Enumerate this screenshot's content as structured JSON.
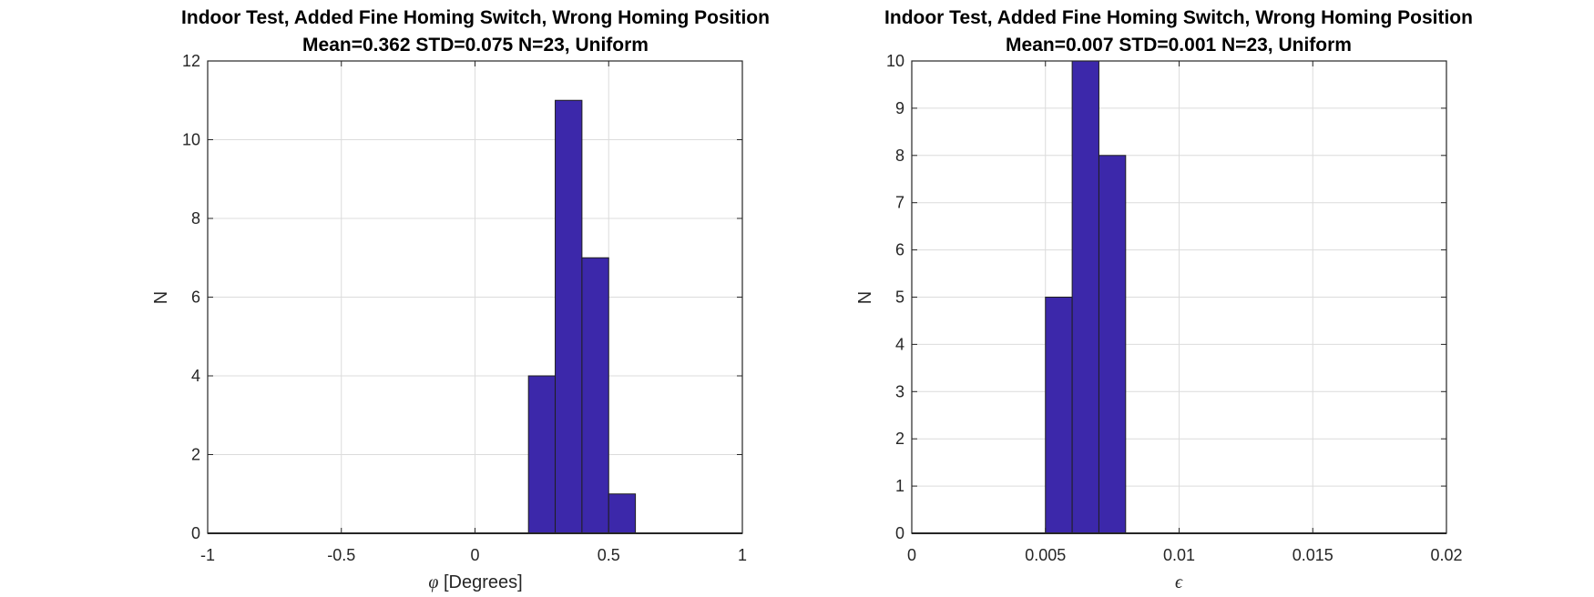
{
  "chart_data": [
    {
      "type": "bar",
      "title": "Indoor Test, Added Fine Homing Switch, Wrong Homing Position",
      "subtitle": "Mean=0.362 STD=0.075 N=23, Uniform",
      "xlabel_symbol": "φ",
      "xlabel": " [Degrees]",
      "ylabel": "N",
      "xlim": [
        -1,
        1
      ],
      "ylim": [
        0,
        12
      ],
      "xticks": [
        -1,
        -0.5,
        0,
        0.5,
        1
      ],
      "xtick_labels": [
        "-1",
        "-0.5",
        "0",
        "0.5",
        "1"
      ],
      "yticks": [
        0,
        2,
        4,
        6,
        8,
        10,
        12
      ],
      "ytick_labels": [
        "0",
        "2",
        "4",
        "6",
        "8",
        "10",
        "12"
      ],
      "grid": true,
      "bins": [
        {
          "x0": 0.2,
          "x1": 0.3,
          "value": 4
        },
        {
          "x0": 0.3,
          "x1": 0.4,
          "value": 11
        },
        {
          "x0": 0.4,
          "x1": 0.5,
          "value": 7
        },
        {
          "x0": 0.5,
          "x1": 0.6,
          "value": 1
        }
      ],
      "bar_color": "#3c28aa"
    },
    {
      "type": "bar",
      "title": "Indoor Test, Added Fine Homing Switch, Wrong Homing Position",
      "subtitle": "Mean=0.007 STD=0.001 N=23, Uniform",
      "xlabel_symbol": "ϵ",
      "xlabel": "",
      "ylabel": "N",
      "xlim": [
        0,
        0.02
      ],
      "ylim": [
        0,
        10
      ],
      "xticks": [
        0,
        0.005,
        0.01,
        0.015,
        0.02
      ],
      "xtick_labels": [
        "0",
        "0.005",
        "0.01",
        "0.015",
        "0.02"
      ],
      "yticks": [
        0,
        1,
        2,
        3,
        4,
        5,
        6,
        7,
        8,
        9,
        10
      ],
      "ytick_labels": [
        "0",
        "1",
        "2",
        "3",
        "4",
        "5",
        "6",
        "7",
        "8",
        "9",
        "10"
      ],
      "grid": true,
      "bins": [
        {
          "x0": 0.005,
          "x1": 0.006,
          "value": 5
        },
        {
          "x0": 0.006,
          "x1": 0.007,
          "value": 10
        },
        {
          "x0": 0.007,
          "x1": 0.008,
          "value": 8
        }
      ],
      "bar_color": "#3c28aa"
    }
  ]
}
